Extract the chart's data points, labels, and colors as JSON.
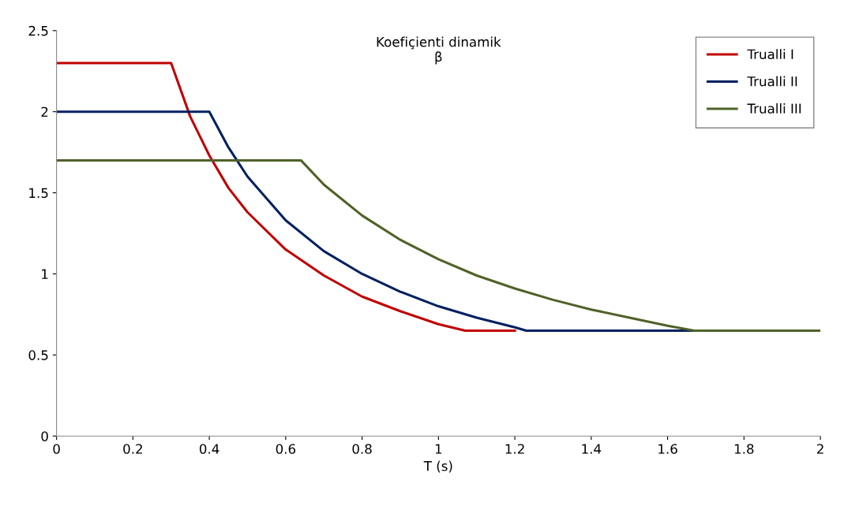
{
  "chart_data": {
    "type": "line",
    "title": "Koefiçienti dinamik\nβ",
    "xlabel": "T (s)",
    "xlim": [
      0,
      2
    ],
    "xticks": [
      0,
      0.2,
      0.4,
      0.6,
      0.8,
      1,
      1.2,
      1.4,
      1.6,
      1.8,
      2
    ],
    "ylim": [
      0,
      2.5
    ],
    "yticks": [
      0,
      0.5,
      1,
      1.5,
      2,
      2.5
    ],
    "grid": false,
    "legend": "top right",
    "marker": "none",
    "line_style": "solid",
    "series": [
      {
        "name": "Trualli I",
        "color": "#c00000",
        "x": [
          0,
          0.3,
          0.35,
          0.4,
          0.45,
          0.5,
          0.6,
          0.7,
          0.8,
          0.9,
          1.0,
          1.07,
          1.2
        ],
        "values": [
          2.3,
          2.3,
          1.97,
          1.73,
          1.53,
          1.38,
          1.15,
          0.99,
          0.86,
          0.77,
          0.69,
          0.65,
          0.65
        ]
      },
      {
        "name": "Trualli II",
        "color": "#002060",
        "x": [
          0,
          0.4,
          0.45,
          0.5,
          0.6,
          0.7,
          0.8,
          0.9,
          1.0,
          1.1,
          1.2,
          1.23,
          1.4,
          1.6,
          1.8
        ],
        "values": [
          2.0,
          2.0,
          1.78,
          1.6,
          1.33,
          1.14,
          1.0,
          0.89,
          0.8,
          0.73,
          0.67,
          0.65,
          0.65,
          0.65,
          0.65
        ]
      },
      {
        "name": "Trualli III",
        "color": "#4f6228",
        "x": [
          0,
          0.64,
          0.7,
          0.8,
          0.9,
          1.0,
          1.1,
          1.2,
          1.3,
          1.4,
          1.5,
          1.6,
          1.67,
          1.8,
          2.0
        ],
        "values": [
          1.7,
          1.7,
          1.55,
          1.36,
          1.21,
          1.09,
          0.99,
          0.91,
          0.84,
          0.78,
          0.73,
          0.68,
          0.65,
          0.65,
          0.65
        ]
      }
    ]
  }
}
